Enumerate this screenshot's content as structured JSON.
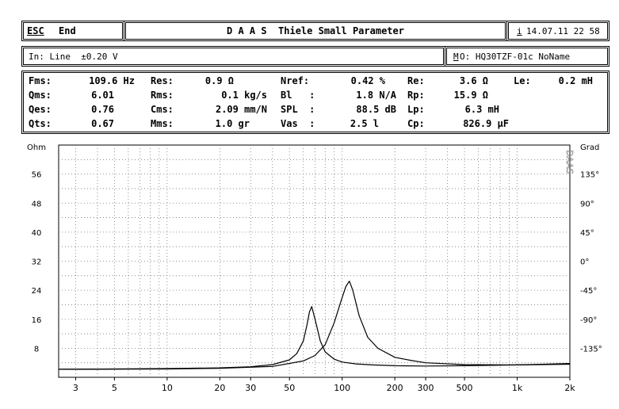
{
  "header": {
    "esc_key": "ESC",
    "esc_label": "End",
    "title": "D A A S  Thiele Small Parameter",
    "info_key": "i",
    "datetime": "14.07.11 22 58"
  },
  "input_bar": {
    "input_label": "In: Line  ±0.20 V",
    "model_key": "M",
    "model_label": "O: HQ30TZF-01c NoName"
  },
  "parameters": {
    "rows": [
      [
        {
          "label": "Fms:",
          "value": "109.6 Hz"
        },
        {
          "label": "Res:",
          "value": "0.9 Ω"
        },
        {
          "label": "Nref:",
          "value": "0.42 %"
        },
        {
          "label": "Re:",
          "value": "3.6 Ω"
        },
        {
          "label": "Le:",
          "value": "0.2 mH"
        }
      ],
      [
        {
          "label": "Qms:",
          "value": "6.01"
        },
        {
          "label": "Rms:",
          "value": "0.1 kg/s"
        },
        {
          "label": "Bl   :",
          "value": "1.8 N/A"
        },
        {
          "label": "Rp:",
          "value": "15.9 Ω"
        }
      ],
      [
        {
          "label": "Qes:",
          "value": "0.76"
        },
        {
          "label": "Cms:",
          "value": "2.09 mm/N"
        },
        {
          "label": "SPL  :",
          "value": "88.5 dB"
        },
        {
          "label": "Lp:",
          "value": "6.3 mH"
        }
      ],
      [
        {
          "label": "Qts:",
          "value": "0.67"
        },
        {
          "label": "Mms:",
          "value": "1.0 gr"
        },
        {
          "label": "Vas  :",
          "value": "2.5 l"
        },
        {
          "label": "Cp:",
          "value": "826.9 µF"
        }
      ]
    ]
  },
  "chart_data": {
    "type": "line",
    "xscale": "log",
    "xlim": [
      2.4,
      2000
    ],
    "ylim": [
      0,
      64
    ],
    "y2lim": [
      -180,
      180
    ],
    "ylabel": "Ohm",
    "y2label": "Grad",
    "watermark": "DAAS",
    "x_ticks": [
      {
        "v": 3,
        "label": "3"
      },
      {
        "v": 5,
        "label": "5"
      },
      {
        "v": 10,
        "label": "10"
      },
      {
        "v": 20,
        "label": "20"
      },
      {
        "v": 30,
        "label": "30"
      },
      {
        "v": 50,
        "label": "50"
      },
      {
        "v": 100,
        "label": "100"
      },
      {
        "v": 200,
        "label": "200"
      },
      {
        "v": 300,
        "label": "300"
      },
      {
        "v": 500,
        "label": "500"
      },
      {
        "v": 1000,
        "label": "1k"
      },
      {
        "v": 2000,
        "label": "2k"
      }
    ],
    "y_ticks": [
      {
        "v": 8,
        "label": "8"
      },
      {
        "v": 16,
        "label": "16"
      },
      {
        "v": 24,
        "label": "24"
      },
      {
        "v": 32,
        "label": "32"
      },
      {
        "v": 40,
        "label": "40"
      },
      {
        "v": 48,
        "label": "48"
      },
      {
        "v": 56,
        "label": "56"
      }
    ],
    "y2_ticks": [
      {
        "v": 135,
        "label": "135°"
      },
      {
        "v": 90,
        "label": "90°"
      },
      {
        "v": 45,
        "label": "45°"
      },
      {
        "v": 0,
        "label": "0°"
      },
      {
        "v": -45,
        "label": "-45°"
      },
      {
        "v": -90,
        "label": "-90°"
      },
      {
        "v": -135,
        "label": "-135°"
      }
    ],
    "series": [
      {
        "color": "#000000",
        "points": [
          [
            2.4,
            2.2
          ],
          [
            5,
            2.3
          ],
          [
            10,
            2.4
          ],
          [
            20,
            2.6
          ],
          [
            30,
            2.9
          ],
          [
            40,
            3.5
          ],
          [
            50,
            4.8
          ],
          [
            55,
            6.5
          ],
          [
            60,
            10
          ],
          [
            63,
            14.5
          ],
          [
            65,
            18
          ],
          [
            67,
            19.5
          ],
          [
            70,
            16
          ],
          [
            75,
            10
          ],
          [
            80,
            7
          ],
          [
            90,
            5
          ],
          [
            100,
            4.2
          ],
          [
            120,
            3.7
          ],
          [
            150,
            3.4
          ],
          [
            200,
            3.2
          ],
          [
            300,
            3.1
          ],
          [
            500,
            3.2
          ],
          [
            1000,
            3.4
          ],
          [
            2000,
            3.6
          ]
        ]
      },
      {
        "color": "#000000",
        "points": [
          [
            2.4,
            2.2
          ],
          [
            10,
            2.3
          ],
          [
            20,
            2.5
          ],
          [
            40,
            3
          ],
          [
            60,
            4.5
          ],
          [
            70,
            6
          ],
          [
            80,
            9
          ],
          [
            90,
            15
          ],
          [
            100,
            22
          ],
          [
            105,
            25
          ],
          [
            110,
            26.5
          ],
          [
            115,
            24
          ],
          [
            125,
            17
          ],
          [
            140,
            11
          ],
          [
            160,
            8
          ],
          [
            200,
            5.5
          ],
          [
            250,
            4.6
          ],
          [
            300,
            4
          ],
          [
            500,
            3.5
          ],
          [
            1000,
            3.4
          ],
          [
            2000,
            3.8
          ]
        ]
      }
    ]
  }
}
